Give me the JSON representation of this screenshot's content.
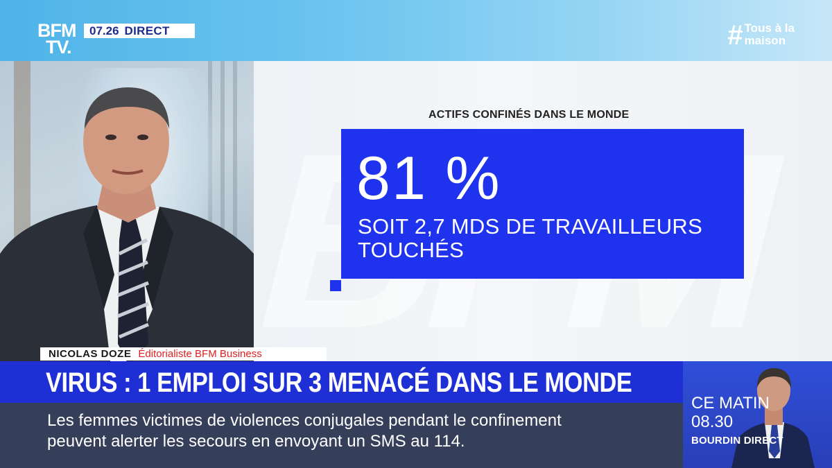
{
  "channel": {
    "logo_line1": "BFM",
    "logo_line2": "TV.",
    "time": "07.26",
    "live_label": "DIRECT",
    "hashtag_symbol": "#",
    "hashtag_line1": "Tous à la",
    "hashtag_line2": "maison"
  },
  "card": {
    "label": "ACTIFS CONFINÉS DANS LE MONDE",
    "big_value": "81 %",
    "subtext_line1": "SOIT 2,7 MDS DE TRAVAILLEURS",
    "subtext_line2": "TOUCHÉS",
    "color": "#1f33ee"
  },
  "lower_third": {
    "name": "NICOLAS DOZE",
    "role": "Éditorialiste BFM Business",
    "headline": "VIRUS : 1 EMPLOI SUR 3 MENACÉ DANS LE MONDE",
    "ticker_line1": "Les femmes victimes de violences conjugales pendant le confinement",
    "ticker_line2": "peuvent alerter les secours en envoyant un SMS au 114.",
    "headline_color": "#1f2fd6"
  },
  "promo": {
    "label": "CE MATIN",
    "time": "08.30",
    "show": "BOURDIN DIRECT"
  }
}
